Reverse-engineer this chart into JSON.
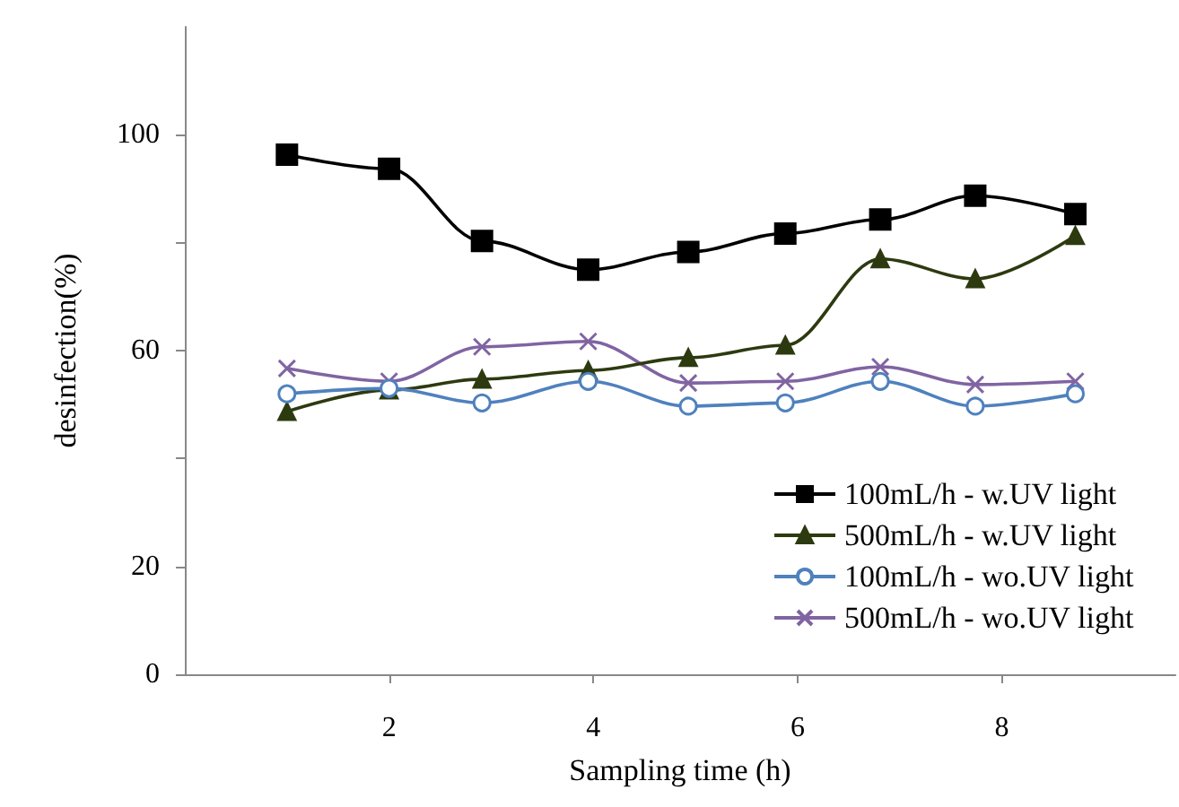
{
  "chart_data": {
    "type": "line",
    "xlabel": "Sampling time (h)",
    "ylabel": "desinfection(%)",
    "x": [
      1.0,
      2.0,
      2.91,
      3.95,
      4.93,
      5.88,
      6.81,
      7.74,
      8.72
    ],
    "xlim": [
      0,
      9.7
    ],
    "xticks": [
      2,
      4,
      6,
      8
    ],
    "ylim": [
      0,
      120
    ],
    "yticks": [
      0,
      20,
      {
        "value": 40,
        "label": null
      },
      60,
      {
        "value": 80,
        "label": null
      },
      100
    ],
    "grid": false,
    "legend": "bottom right",
    "line_style": "solid",
    "series": [
      {
        "name": "100mL/h - w.UV light",
        "color": "#000000",
        "marker": "square",
        "values": [
          96.3,
          93.7,
          80.3,
          75,
          78.3,
          81.7,
          84.3,
          88.7,
          85.3
        ]
      },
      {
        "name": "500mL/h - w.UV light",
        "color": "#2d3a10",
        "marker": "triangle",
        "values": [
          48.7,
          52.7,
          54.7,
          56.3,
          58.7,
          61,
          77,
          73.3,
          81.3
        ]
      },
      {
        "name": "100mL/h - wo.UV light",
        "color": "#4f81bd",
        "marker": "circle",
        "values": [
          52,
          53,
          50.3,
          54.3,
          49.7,
          50.3,
          54.3,
          49.7,
          52
        ]
      },
      {
        "name": "500mL/h - wo.UV light",
        "color": "#8064a2",
        "marker": "cross",
        "values": [
          56.7,
          54.3,
          60.7,
          61.7,
          54,
          54.3,
          57,
          53.7,
          54.3
        ]
      }
    ]
  }
}
